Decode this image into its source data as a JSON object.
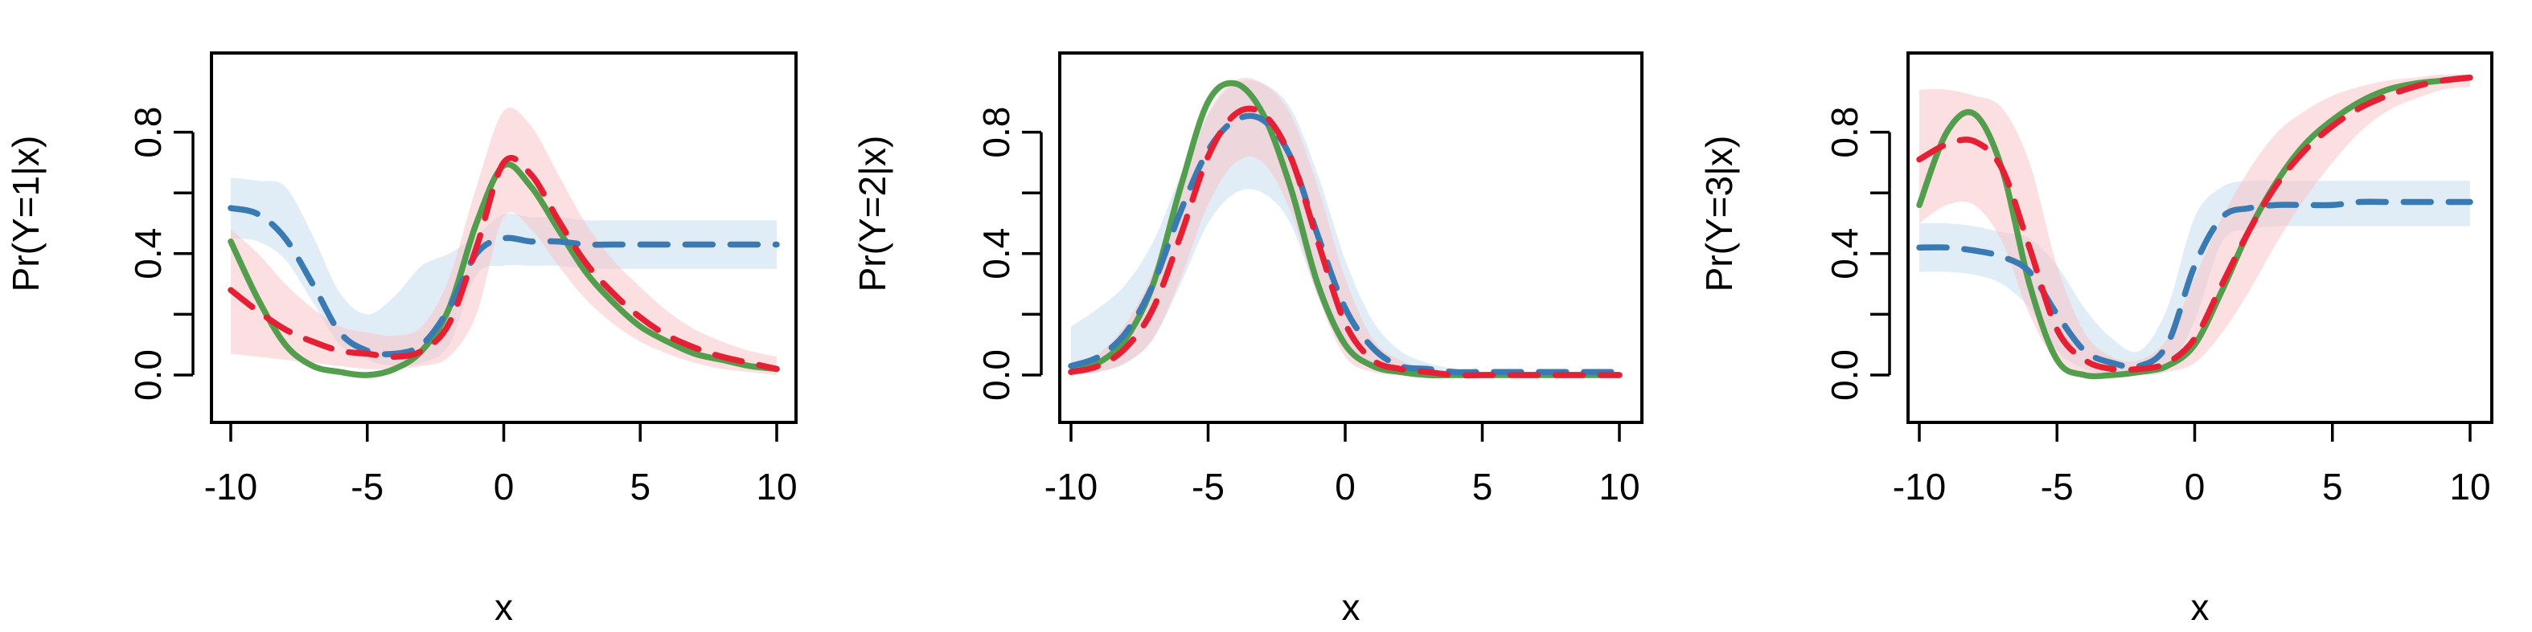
{
  "chart_data": [
    {
      "type": "line",
      "ylabel": "Pr(Y=1|x)",
      "xlabel": "x",
      "xlim": [
        -10,
        10
      ],
      "ylim": [
        0,
        1
      ],
      "xticks": [
        "-10",
        "-5",
        "0",
        "5",
        "10"
      ],
      "yticks": [
        "0.0",
        "0.4",
        "0.8"
      ],
      "x": [
        -10,
        -9,
        -8,
        -7,
        -6,
        -5,
        -4,
        -3,
        -2,
        -1,
        0,
        1,
        2,
        3,
        4,
        5,
        6,
        7,
        8,
        9,
        10
      ],
      "series": [
        {
          "color": "#4a9a44",
          "style": "solid",
          "values": [
            0.44,
            0.25,
            0.1,
            0.03,
            0.01,
            0.0,
            0.02,
            0.08,
            0.22,
            0.5,
            0.69,
            0.62,
            0.48,
            0.34,
            0.24,
            0.16,
            0.11,
            0.07,
            0.05,
            0.03,
            0.02
          ]
        },
        {
          "color": "#3a7ab3",
          "style": "dashed",
          "values": [
            0.55,
            0.53,
            0.45,
            0.3,
            0.14,
            0.08,
            0.07,
            0.1,
            0.22,
            0.4,
            0.45,
            0.44,
            0.44,
            0.43,
            0.43,
            0.43,
            0.43,
            0.43,
            0.43,
            0.43,
            0.43
          ]
        },
        {
          "color": "#e52035",
          "style": "dashed",
          "values": [
            0.28,
            0.21,
            0.15,
            0.11,
            0.08,
            0.07,
            0.06,
            0.08,
            0.17,
            0.42,
            0.7,
            0.66,
            0.51,
            0.37,
            0.27,
            0.19,
            0.13,
            0.09,
            0.06,
            0.04,
            0.02
          ]
        }
      ],
      "bands": [
        {
          "color": "#c9deef",
          "lower": [
            0.45,
            0.44,
            0.38,
            0.24,
            0.1,
            0.05,
            0.03,
            0.04,
            0.1,
            0.33,
            0.36,
            0.36,
            0.36,
            0.35,
            0.35,
            0.35,
            0.35,
            0.35,
            0.35,
            0.35,
            0.35
          ],
          "upper": [
            0.65,
            0.64,
            0.62,
            0.46,
            0.27,
            0.2,
            0.26,
            0.36,
            0.4,
            0.46,
            0.53,
            0.52,
            0.52,
            0.51,
            0.51,
            0.51,
            0.51,
            0.51,
            0.51,
            0.51,
            0.51
          ]
        },
        {
          "color": "#f7c4c8",
          "lower": [
            0.07,
            0.06,
            0.05,
            0.04,
            0.03,
            0.02,
            0.02,
            0.03,
            0.06,
            0.2,
            0.52,
            0.48,
            0.36,
            0.25,
            0.17,
            0.11,
            0.07,
            0.04,
            0.02,
            0.01,
            0.0
          ],
          "upper": [
            0.48,
            0.4,
            0.3,
            0.22,
            0.16,
            0.14,
            0.13,
            0.16,
            0.32,
            0.62,
            0.87,
            0.82,
            0.66,
            0.5,
            0.38,
            0.29,
            0.21,
            0.15,
            0.11,
            0.08,
            0.06
          ]
        }
      ]
    },
    {
      "type": "line",
      "ylabel": "Pr(Y=2|x)",
      "xlabel": "x",
      "xlim": [
        -10,
        10
      ],
      "ylim": [
        0,
        1
      ],
      "xticks": [
        "-10",
        "-5",
        "0",
        "5",
        "10"
      ],
      "yticks": [
        "0.0",
        "0.4",
        "0.8"
      ],
      "x": [
        -10,
        -9,
        -8,
        -7,
        -6,
        -5,
        -4,
        -3,
        -2,
        -1,
        0,
        1,
        2,
        3,
        4,
        5,
        6,
        7,
        8,
        9,
        10
      ],
      "series": [
        {
          "color": "#4a9a44",
          "style": "solid",
          "values": [
            0.01,
            0.04,
            0.12,
            0.3,
            0.62,
            0.9,
            0.96,
            0.86,
            0.62,
            0.3,
            0.1,
            0.03,
            0.01,
            0.0,
            0.0,
            0.0,
            0.0,
            0.0,
            0.0,
            0.0,
            0.0
          ]
        },
        {
          "color": "#3a7ab3",
          "style": "dashed",
          "values": [
            0.03,
            0.06,
            0.14,
            0.3,
            0.54,
            0.74,
            0.84,
            0.84,
            0.72,
            0.46,
            0.22,
            0.09,
            0.03,
            0.02,
            0.01,
            0.01,
            0.01,
            0.01,
            0.01,
            0.01,
            0.01
          ]
        },
        {
          "color": "#e52035",
          "style": "dashed",
          "values": [
            0.01,
            0.03,
            0.09,
            0.22,
            0.46,
            0.72,
            0.86,
            0.86,
            0.72,
            0.44,
            0.17,
            0.05,
            0.02,
            0.01,
            0.0,
            0.0,
            0.0,
            0.0,
            0.0,
            0.0,
            0.0
          ]
        }
      ],
      "bands": [
        {
          "color": "#c9deef",
          "lower": [
            0.0,
            0.01,
            0.04,
            0.12,
            0.3,
            0.5,
            0.6,
            0.6,
            0.5,
            0.26,
            0.08,
            0.02,
            0.0,
            0.0,
            0.0,
            0.0,
            0.0,
            0.0,
            0.0,
            0.0,
            0.0
          ],
          "upper": [
            0.16,
            0.22,
            0.3,
            0.44,
            0.66,
            0.86,
            0.96,
            0.96,
            0.88,
            0.66,
            0.38,
            0.18,
            0.08,
            0.04,
            0.02,
            0.01,
            0.01,
            0.01,
            0.01,
            0.01,
            0.01
          ]
        },
        {
          "color": "#f7c4c8",
          "lower": [
            0.0,
            0.01,
            0.04,
            0.12,
            0.32,
            0.56,
            0.7,
            0.7,
            0.54,
            0.26,
            0.06,
            0.01,
            0.0,
            0.0,
            0.0,
            0.0,
            0.0,
            0.0,
            0.0,
            0.0,
            0.0
          ],
          "upper": [
            0.03,
            0.07,
            0.17,
            0.34,
            0.6,
            0.86,
            0.97,
            0.96,
            0.86,
            0.62,
            0.32,
            0.12,
            0.05,
            0.02,
            0.01,
            0.01,
            0.0,
            0.0,
            0.0,
            0.0,
            0.0
          ]
        }
      ]
    },
    {
      "type": "line",
      "ylabel": "Pr(Y=3|x)",
      "xlabel": "x",
      "xlim": [
        -10,
        10
      ],
      "ylim": [
        0,
        1
      ],
      "xticks": [
        "-10",
        "-5",
        "0",
        "5",
        "10"
      ],
      "yticks": [
        "0.0",
        "0.4",
        "0.8"
      ],
      "x": [
        -10,
        -9,
        -8,
        -7,
        -6,
        -5,
        -4,
        -3,
        -2,
        -1,
        0,
        1,
        2,
        3,
        4,
        5,
        6,
        7,
        8,
        9,
        10
      ],
      "series": [
        {
          "color": "#4a9a44",
          "style": "solid",
          "values": [
            0.56,
            0.8,
            0.86,
            0.68,
            0.3,
            0.05,
            0.0,
            0.0,
            0.01,
            0.03,
            0.1,
            0.28,
            0.48,
            0.64,
            0.76,
            0.84,
            0.9,
            0.94,
            0.96,
            0.97,
            0.98
          ]
        },
        {
          "color": "#3a7ab3",
          "style": "dashed",
          "values": [
            0.42,
            0.42,
            0.41,
            0.39,
            0.34,
            0.2,
            0.08,
            0.04,
            0.03,
            0.1,
            0.36,
            0.52,
            0.55,
            0.56,
            0.56,
            0.56,
            0.57,
            0.57,
            0.57,
            0.57,
            0.57
          ]
        },
        {
          "color": "#e52035",
          "style": "dashed",
          "values": [
            0.71,
            0.76,
            0.77,
            0.68,
            0.42,
            0.15,
            0.05,
            0.02,
            0.02,
            0.04,
            0.12,
            0.3,
            0.48,
            0.63,
            0.74,
            0.82,
            0.88,
            0.92,
            0.95,
            0.97,
            0.98
          ]
        }
      ],
      "bands": [
        {
          "color": "#c9deef",
          "lower": [
            0.34,
            0.34,
            0.33,
            0.3,
            0.22,
            0.08,
            0.02,
            0.0,
            0.0,
            0.02,
            0.18,
            0.44,
            0.48,
            0.49,
            0.49,
            0.49,
            0.49,
            0.49,
            0.49,
            0.49,
            0.49
          ],
          "upper": [
            0.5,
            0.5,
            0.49,
            0.47,
            0.45,
            0.36,
            0.22,
            0.12,
            0.08,
            0.22,
            0.52,
            0.62,
            0.64,
            0.64,
            0.64,
            0.64,
            0.64,
            0.64,
            0.64,
            0.64,
            0.64
          ]
        },
        {
          "color": "#f7c4c8",
          "lower": [
            0.5,
            0.56,
            0.56,
            0.44,
            0.2,
            0.04,
            0.0,
            0.0,
            0.0,
            0.01,
            0.04,
            0.14,
            0.28,
            0.44,
            0.58,
            0.7,
            0.8,
            0.87,
            0.91,
            0.94,
            0.95
          ],
          "upper": [
            0.94,
            0.94,
            0.92,
            0.88,
            0.7,
            0.36,
            0.14,
            0.06,
            0.05,
            0.12,
            0.32,
            0.52,
            0.68,
            0.8,
            0.87,
            0.92,
            0.95,
            0.97,
            0.98,
            0.99,
            0.99
          ]
        }
      ]
    }
  ]
}
